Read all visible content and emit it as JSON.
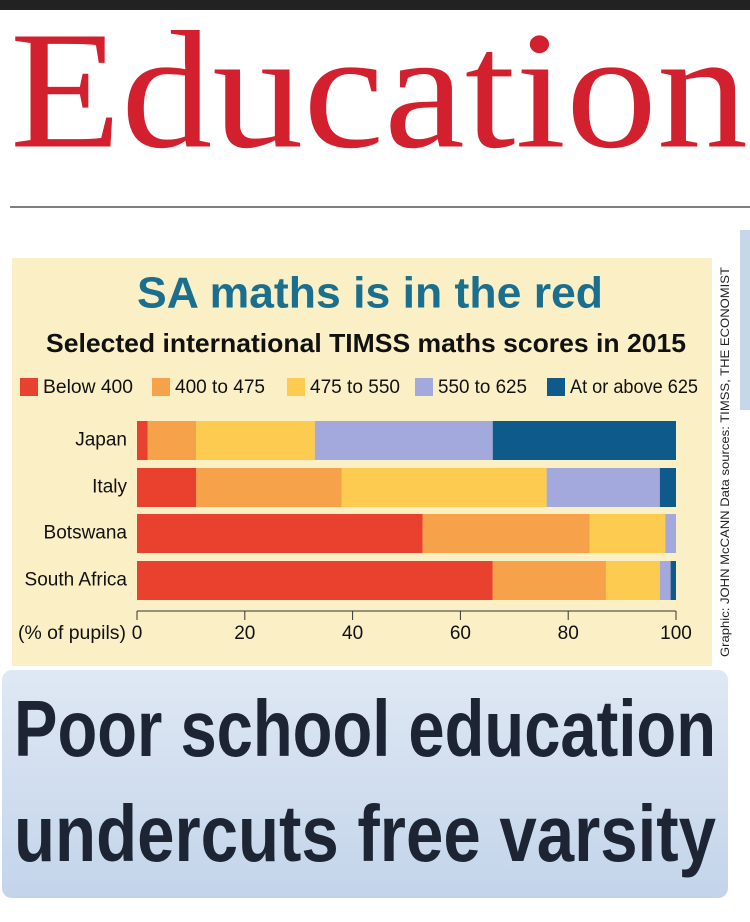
{
  "section": "Education",
  "chart_data": {
    "type": "stacked_barh",
    "title": "SA maths is in the red",
    "subtitle": "Selected international TIMSS maths scores in 2015",
    "x_label": "(% of pupils)",
    "credit": "Graphic: JOHN McCANN  Data sources: TIMSS, THE ECONOMIST",
    "categories": [
      "Japan",
      "Italy",
      "Botswana",
      "South Africa"
    ],
    "series": [
      {
        "name": "Below 400",
        "color": "#e8412d",
        "values": [
          2,
          11,
          53,
          66
        ]
      },
      {
        "name": "400 to 475",
        "color": "#f6a24a",
        "values": [
          9,
          27,
          31,
          21
        ]
      },
      {
        "name": "475 to 550",
        "color": "#fccb4f",
        "values": [
          22,
          38,
          14,
          10
        ]
      },
      {
        "name": "550 to 625",
        "color": "#a3a9dd",
        "values": [
          33,
          21,
          2,
          2
        ]
      },
      {
        "name": "At or above 625",
        "color": "#0e5a8a",
        "values": [
          34,
          3,
          0,
          1
        ]
      }
    ],
    "xlim": [
      0,
      100
    ],
    "xticks": [
      0,
      20,
      40,
      60,
      80,
      100
    ]
  },
  "headline": [
    "Poor school education",
    "undercuts free varsity"
  ]
}
